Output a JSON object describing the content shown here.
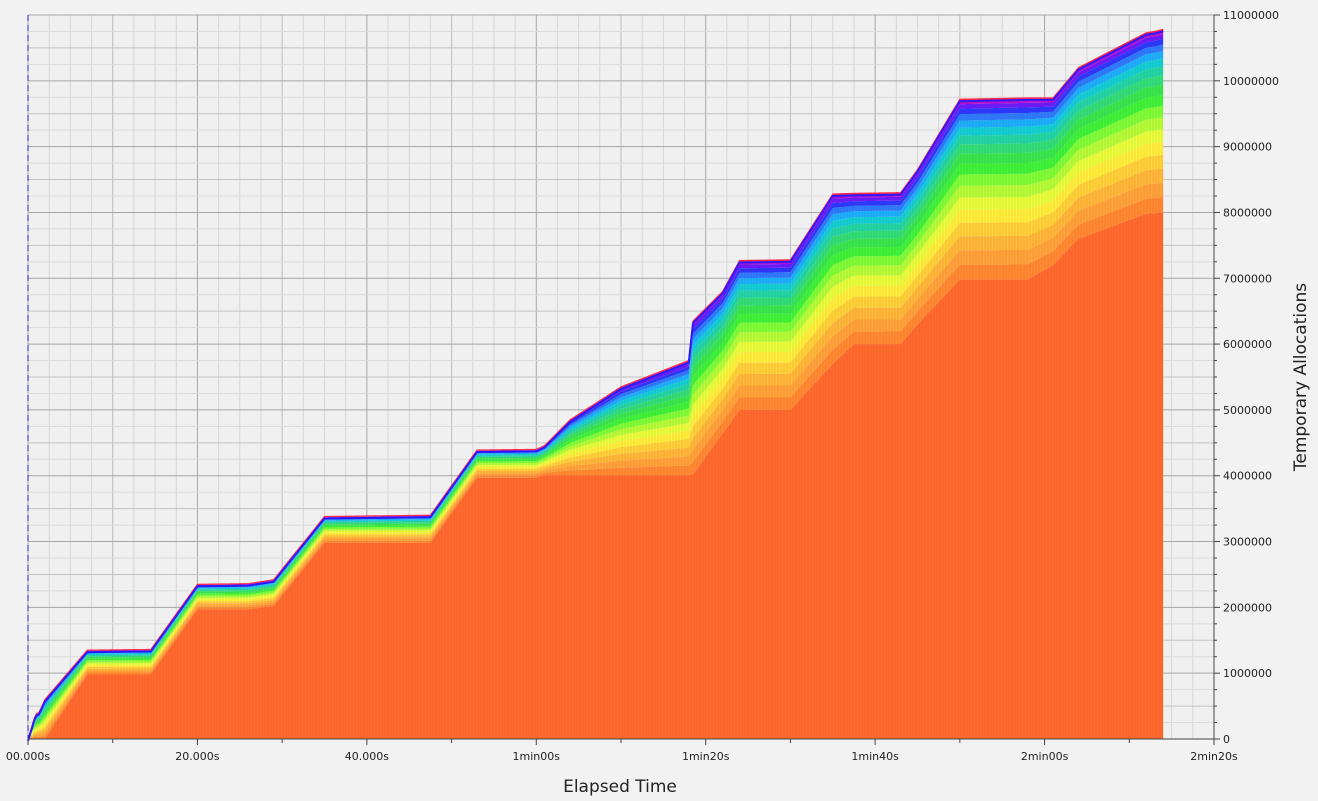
{
  "chart_data": {
    "type": "area",
    "xlabel": "Elapsed Time",
    "ylabel": "Temporary Allocations",
    "x_unit": "seconds",
    "xlim": [
      0,
      140
    ],
    "ylim": [
      0,
      11000000
    ],
    "grid": true,
    "x_ticks": [
      {
        "value": 0,
        "label": "00.000s"
      },
      {
        "value": 20,
        "label": "20.000s"
      },
      {
        "value": 40,
        "label": "40.000s"
      },
      {
        "value": 60,
        "label": "1min00s"
      },
      {
        "value": 80,
        "label": "1min20s"
      },
      {
        "value": 100,
        "label": "1min40s"
      },
      {
        "value": 120,
        "label": "2min00s"
      },
      {
        "value": 140,
        "label": "2min20s"
      }
    ],
    "y_ticks": [
      {
        "value": 0,
        "label": "0"
      },
      {
        "value": 1000000,
        "label": "1000000"
      },
      {
        "value": 2000000,
        "label": "2000000"
      },
      {
        "value": 3000000,
        "label": "3000000"
      },
      {
        "value": 4000000,
        "label": "4000000"
      },
      {
        "value": 5000000,
        "label": "5000000"
      },
      {
        "value": 6000000,
        "label": "6000000"
      },
      {
        "value": 7000000,
        "label": "7000000"
      },
      {
        "value": 8000000,
        "label": "8000000"
      },
      {
        "value": 9000000,
        "label": "9000000"
      },
      {
        "value": 10000000,
        "label": "10000000"
      },
      {
        "value": 11000000,
        "label": "11000000"
      }
    ],
    "total_series": {
      "x": [
        0,
        0.9,
        1.3,
        2,
        7,
        14.5,
        20,
        26,
        29,
        35,
        47.5,
        53,
        60,
        61,
        64,
        70,
        78,
        78.5,
        82,
        84,
        90,
        95,
        97.5,
        103,
        105,
        110,
        118,
        121,
        124,
        132,
        133,
        134.2
      ],
      "y": [
        0,
        380000,
        400000,
        600000,
        1350000,
        1360000,
        2350000,
        2360000,
        2420000,
        3380000,
        3400000,
        4390000,
        4400000,
        4460000,
        4850000,
        5350000,
        5750000,
        6350000,
        6800000,
        7270000,
        7280000,
        8280000,
        8290000,
        8300000,
        8650000,
        9720000,
        9740000,
        9740000,
        10200000,
        10730000,
        10750000,
        10790000
      ]
    },
    "base_series": {
      "x": [
        0,
        2,
        7,
        14.5,
        20,
        26,
        29,
        35,
        47.5,
        53,
        60,
        61,
        78,
        78.5,
        84,
        90,
        95,
        97.5,
        103,
        105,
        110,
        118,
        121,
        124,
        132,
        133,
        134.2
      ],
      "y": [
        0,
        0,
        980000,
        980000,
        1970000,
        1970000,
        2020000,
        2980000,
        2980000,
        3970000,
        3970000,
        4010000,
        4010000,
        4020000,
        5000000,
        5000000,
        5700000,
        6000000,
        6000000,
        6300000,
        6980000,
        6980000,
        7200000,
        7600000,
        7980000,
        7990000,
        8000000
      ]
    },
    "layer_count": 24,
    "band_colors": [
      "#ff6a2e",
      "#ff8a33",
      "#ffa33a",
      "#ffb83a",
      "#ffd23a",
      "#fff03c",
      "#e8ff3c",
      "#b4ff38",
      "#7cff38",
      "#3cf53a",
      "#34e84e",
      "#2fdf7a",
      "#1fd6a8",
      "#0fd0d6",
      "#18b0ff",
      "#2b7bff",
      "#2838ff",
      "#6a1aff",
      "#b80fd0",
      "#ff1744"
    ]
  }
}
